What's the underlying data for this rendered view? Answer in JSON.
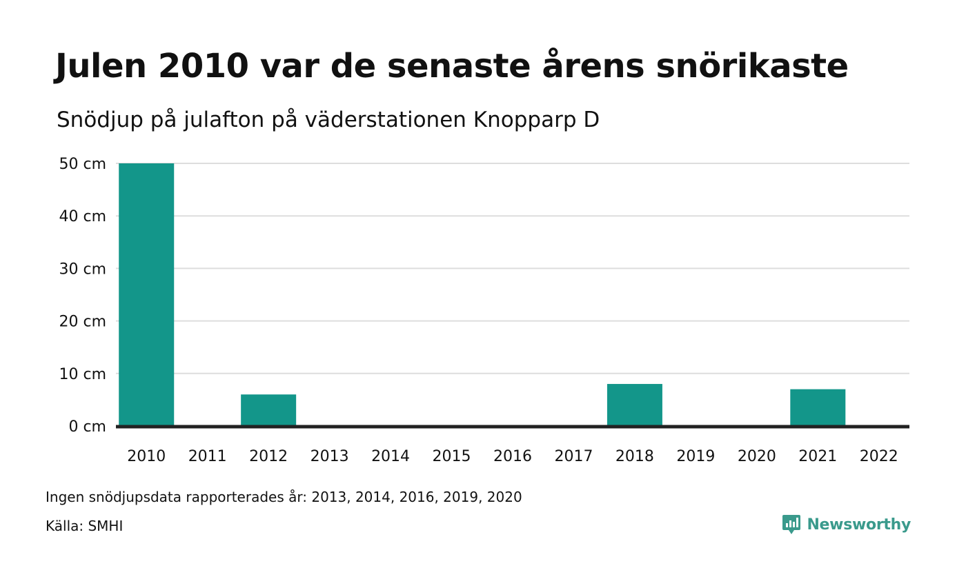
{
  "header": {
    "title": "Julen 2010 var de senaste årens snörikaste",
    "subtitle": "Snödjup på julafton på väderstationen Knopparp D"
  },
  "footer": {
    "note": "Ingen snödjupsdata rapporterades år: 2013, 2014, 2016, 2019, 2020",
    "source": "Källa: SMHI",
    "brand": "Newsworthy",
    "brand_icon": "newsworthy-logo-icon"
  },
  "colors": {
    "bar": "#13968a",
    "grid": "#dddddd",
    "baseline": "#222222",
    "brand": "#3a9a8c"
  },
  "chart_data": {
    "type": "bar",
    "categories": [
      "2010",
      "2011",
      "2012",
      "2013",
      "2014",
      "2015",
      "2016",
      "2017",
      "2018",
      "2019",
      "2020",
      "2021",
      "2022"
    ],
    "values": [
      50,
      0,
      6,
      null,
      null,
      0,
      null,
      0,
      8,
      null,
      null,
      7,
      0
    ],
    "y_ticks": [
      "0 cm",
      "10 cm",
      "20 cm",
      "30 cm",
      "40 cm",
      "50 cm"
    ],
    "ylim": [
      0,
      50
    ],
    "unit": "cm",
    "grid": true,
    "legend": "none"
  }
}
